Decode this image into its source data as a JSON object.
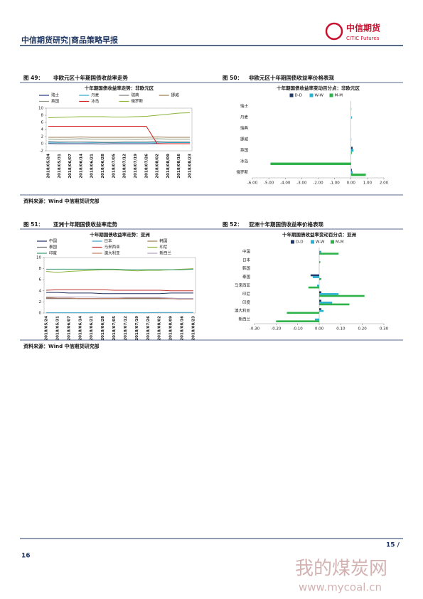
{
  "header": {
    "report_title": "中信期货研究|商品策略早报",
    "logo_cn": "中信期货",
    "logo_en": "CITIC Futures"
  },
  "figures": [
    {
      "label": "图 49：",
      "caption": "非欧元区十年期国债收益率走势"
    },
    {
      "label": "图 50：",
      "caption": "非欧元区十年期国债收益率价格表现"
    },
    {
      "label": "图 51：",
      "caption": "亚洲十年期国债收益率走势"
    },
    {
      "label": "图 52：",
      "caption": "亚洲十年期国债收益率价格表现"
    }
  ],
  "sources": [
    "资料来源：Wind 中信期货研究部",
    "资料来源：Wind 中信期货研究部"
  ],
  "footer": {
    "page_left": "16",
    "page_right": "15 /"
  },
  "watermark": {
    "name": "我的煤炭网",
    "url": "www.mycoal.cn"
  },
  "chart_data": [
    {
      "type": "line",
      "title": "十年期国债收益率走势：非欧元区",
      "grid": false,
      "x": [
        "2018/05/24",
        "2018/05/31",
        "2018/06/07",
        "2018/06/14",
        "2018/06/21",
        "2018/06/28",
        "2018/07/05",
        "2018/07/12",
        "2018/07/19",
        "2018/07/26",
        "2018/08/02",
        "2018/08/09",
        "2018/08/16",
        "2018/08/23"
      ],
      "ylim": [
        -2,
        10
      ],
      "yticks": [
        -2,
        0,
        2,
        4,
        6,
        8,
        10
      ],
      "series": [
        {
          "name": "瑞士",
          "color": "#1f3a7a",
          "values": [
            0.05,
            0.0,
            0.0,
            0.0,
            0.0,
            -0.05,
            0.0,
            0.0,
            0.0,
            0.0,
            0.05,
            0.0,
            0.0,
            0.0
          ]
        },
        {
          "name": "丹麦",
          "color": "#2ca8c8",
          "values": [
            0.4,
            0.35,
            0.4,
            0.4,
            0.35,
            0.3,
            0.3,
            0.35,
            0.35,
            0.35,
            0.4,
            0.3,
            0.3,
            0.3
          ]
        },
        {
          "name": "瑞典",
          "color": "#7a7a7a",
          "values": [
            0.6,
            0.5,
            0.5,
            0.5,
            0.5,
            0.4,
            0.4,
            0.5,
            0.5,
            0.5,
            0.6,
            0.5,
            0.5,
            0.5
          ]
        },
        {
          "name": "挪威",
          "color": "#9a7a50",
          "values": [
            1.8,
            1.8,
            1.8,
            1.9,
            1.8,
            1.8,
            1.8,
            1.8,
            1.8,
            1.8,
            1.9,
            1.8,
            1.8,
            1.8
          ]
        },
        {
          "name": "英国",
          "color": "#8a9a80",
          "values": [
            1.3,
            1.2,
            1.3,
            1.4,
            1.3,
            1.3,
            1.3,
            1.3,
            1.2,
            1.3,
            1.4,
            1.3,
            1.3,
            1.3
          ]
        },
        {
          "name": "冰岛",
          "color": "#d02020",
          "values": [
            4.9,
            4.9,
            4.9,
            4.9,
            4.9,
            4.9,
            4.9,
            4.9,
            4.9,
            4.9,
            0,
            0,
            0,
            0
          ]
        },
        {
          "name": "俄罗斯",
          "color": "#8db33a",
          "values": [
            7.3,
            7.4,
            7.5,
            7.6,
            7.6,
            7.6,
            7.5,
            7.5,
            7.6,
            7.7,
            8.0,
            8.3,
            8.6,
            8.7
          ]
        }
      ]
    },
    {
      "type": "hbar",
      "title": "十年期国债收益率变动百分点：非欧元区",
      "grid": false,
      "categories": [
        "瑞士",
        "丹麦",
        "瑞典",
        "挪威",
        "英国",
        "冰岛",
        "俄罗斯"
      ],
      "xlim": [
        -6,
        2
      ],
      "xticks": [
        {
          "value": -6,
          "label": "-6.00"
        },
        {
          "value": -5,
          "label": "-5.00"
        },
        {
          "value": -4,
          "label": "-4.00"
        },
        {
          "value": -3,
          "label": "-3.00"
        },
        {
          "value": -2,
          "label": "-2.00"
        },
        {
          "value": -1,
          "label": "-1.00"
        },
        {
          "value": 0,
          "label": "0.00"
        },
        {
          "value": 1,
          "label": "1.00"
        },
        {
          "value": 2,
          "label": "2.00"
        }
      ],
      "series": [
        {
          "name": "D-D",
          "color": "#1f3a6a",
          "values": [
            0,
            0,
            0,
            0,
            0.1,
            0,
            0.05
          ]
        },
        {
          "name": "W-W",
          "color": "#2ab0d0",
          "values": [
            0,
            0.05,
            0.01,
            0.02,
            0.15,
            0,
            0.1
          ]
        },
        {
          "name": "M-M",
          "color": "#2db34a",
          "values": [
            0.02,
            0,
            0,
            0,
            0.05,
            -4.9,
            0.9
          ]
        }
      ]
    },
    {
      "type": "line",
      "title": "十年期国债收益率走势：亚洲",
      "grid": false,
      "x": [
        "2018/05/24",
        "2018/05/31",
        "2018/06/07",
        "2018/06/14",
        "2018/06/21",
        "2018/06/28",
        "2018/07/05",
        "2018/07/12",
        "2018/07/19",
        "2018/07/26",
        "2018/08/02",
        "2018/08/09",
        "2018/08/16",
        "2018/08/23"
      ],
      "ylim": [
        0,
        10
      ],
      "yticks": [
        0,
        2,
        4,
        6,
        8,
        10
      ],
      "series": [
        {
          "name": "中国",
          "color": "#1f2f5f",
          "values": [
            3.7,
            3.7,
            3.6,
            3.6,
            3.6,
            3.5,
            3.5,
            3.5,
            3.5,
            3.5,
            3.5,
            3.6,
            3.6,
            3.6
          ]
        },
        {
          "name": "日本",
          "color": "#3aa0c8",
          "values": [
            0.05,
            0.05,
            0.05,
            0.05,
            0.05,
            0.05,
            0.05,
            0.05,
            0.05,
            0.05,
            0.1,
            0.1,
            0.1,
            0.1
          ]
        },
        {
          "name": "韩国",
          "color": "#9a7a50",
          "values": [
            2.8,
            2.7,
            2.7,
            2.6,
            2.6,
            2.6,
            2.6,
            2.6,
            2.6,
            2.6,
            2.6,
            2.6,
            2.5,
            2.5
          ]
        },
        {
          "name": "泰国",
          "color": "#6a6a6a",
          "values": [
            2.6,
            2.6,
            2.6,
            2.6,
            2.6,
            2.6,
            2.6,
            2.6,
            2.6,
            2.6,
            2.6,
            2.6,
            2.6,
            2.6
          ]
        },
        {
          "name": "马来西亚",
          "color": "#c03030",
          "values": [
            4.1,
            4.2,
            4.2,
            4.2,
            4.2,
            4.2,
            4.1,
            4.1,
            4.1,
            4.1,
            4.1,
            4.0,
            4.0,
            4.0
          ]
        },
        {
          "name": "印尼",
          "color": "#8db33a",
          "values": [
            7.5,
            7.3,
            7.5,
            7.6,
            7.7,
            7.8,
            7.8,
            7.7,
            7.6,
            7.7,
            7.7,
            7.8,
            7.9,
            8.0
          ]
        },
        {
          "name": "印度",
          "color": "#3a9a70",
          "values": [
            7.9,
            7.9,
            7.9,
            7.9,
            7.9,
            7.9,
            7.9,
            7.8,
            7.8,
            7.8,
            7.8,
            7.8,
            7.8,
            7.9
          ]
        },
        {
          "name": "澳大利亚",
          "color": "#c08060",
          "values": [
            2.7,
            2.7,
            2.7,
            2.6,
            2.6,
            2.6,
            2.6,
            2.7,
            2.7,
            2.7,
            2.7,
            2.6,
            2.5,
            2.5
          ]
        },
        {
          "name": "新西兰",
          "color": "#b0a0c0",
          "values": [
            2.9,
            2.9,
            2.9,
            2.9,
            2.9,
            2.8,
            2.8,
            2.8,
            2.8,
            2.8,
            2.8,
            2.7,
            2.6,
            2.6
          ]
        }
      ]
    },
    {
      "type": "hbar",
      "title": "十年期国债收益率变动百分点：亚洲",
      "grid": false,
      "categories": [
        "中国",
        "日本",
        "韩国",
        "泰国",
        "马来西亚",
        "印尼",
        "印度",
        "澳大利亚",
        "新西兰"
      ],
      "xlim": [
        -0.3,
        0.3
      ],
      "xticks": [
        {
          "value": -0.3,
          "label": "-0.30"
        },
        {
          "value": -0.2,
          "label": "-0.20"
        },
        {
          "value": -0.1,
          "label": "-0.10"
        },
        {
          "value": 0,
          "label": "0.00"
        },
        {
          "value": 0.1,
          "label": "0.10"
        },
        {
          "value": 0.2,
          "label": "0.20"
        },
        {
          "value": 0.3,
          "label": "0.30"
        }
      ],
      "series": [
        {
          "name": "D-D",
          "color": "#1f3a6a",
          "values": [
            0,
            0,
            0,
            -0.04,
            0,
            0.01,
            0.01,
            0.01,
            0
          ]
        },
        {
          "name": "W-W",
          "color": "#2ab0d0",
          "values": [
            0.01,
            0,
            0,
            -0.03,
            -0.01,
            0.09,
            0.06,
            0.02,
            -0.02
          ]
        },
        {
          "name": "M-M",
          "color": "#2db34a",
          "values": [
            0.09,
            0.005,
            0,
            0.01,
            -0.05,
            0.21,
            0.14,
            -0.15,
            -0.2
          ]
        }
      ]
    }
  ]
}
